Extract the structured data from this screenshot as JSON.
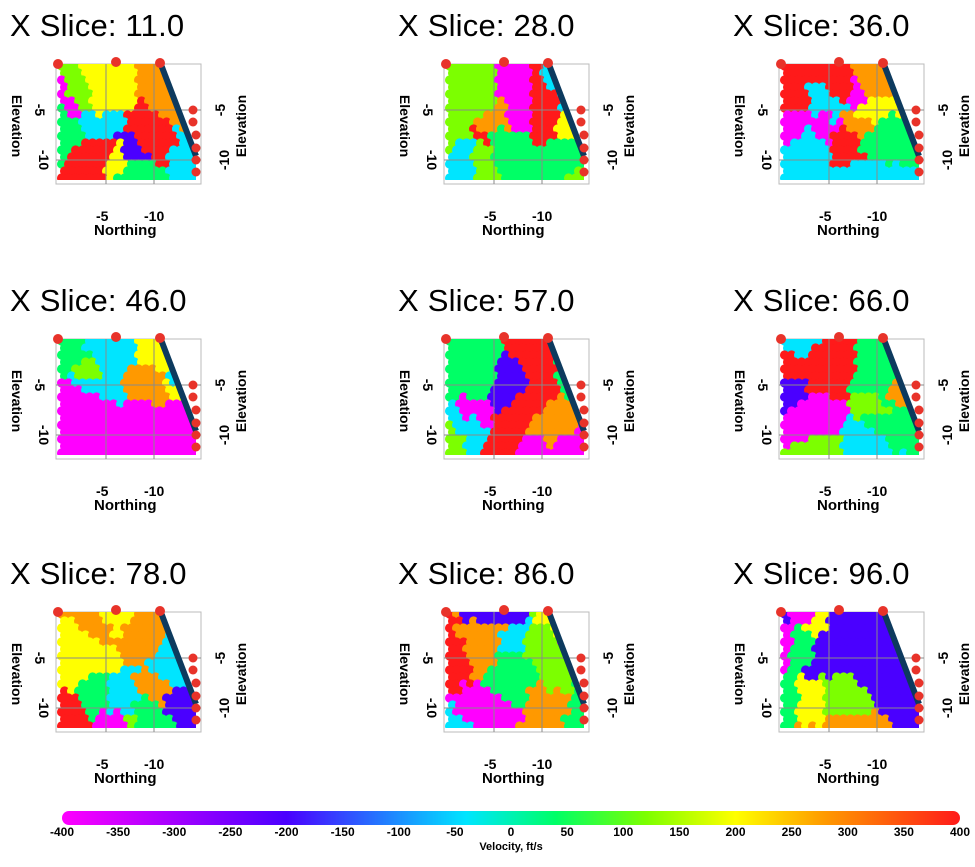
{
  "chart_data": {
    "type": "heatmap",
    "xlabel": "Northing",
    "ylabel": "Elevation",
    "x_tick_labels": [
      "-5",
      "-10"
    ],
    "y_tick_labels": [
      "-5",
      "-10"
    ],
    "panels": [
      {
        "title": "X Slice: 11.0"
      },
      {
        "title": "X Slice: 28.0"
      },
      {
        "title": "X Slice: 36.0"
      },
      {
        "title": "X Slice: 46.0"
      },
      {
        "title": "X Slice: 57.0"
      },
      {
        "title": "X Slice: 66.0"
      },
      {
        "title": "X Slice: 78.0"
      },
      {
        "title": "X Slice: 86.0"
      },
      {
        "title": "X Slice: 96.0"
      }
    ],
    "colorbar": {
      "label": "Velocity, ft/s",
      "range": [
        -400,
        400
      ],
      "ticks": [
        "-400",
        "-350",
        "-300",
        "-250",
        "-200",
        "-150",
        "-100",
        "-50",
        "0",
        "50",
        "100",
        "150",
        "200",
        "250",
        "300",
        "350",
        "400"
      ],
      "colors": [
        "#ff00ff",
        "#4a00ff",
        "#00e5ff",
        "#00ff66",
        "#7cff00",
        "#ffff00",
        "#ff9900",
        "#ff1a1a"
      ]
    }
  }
}
